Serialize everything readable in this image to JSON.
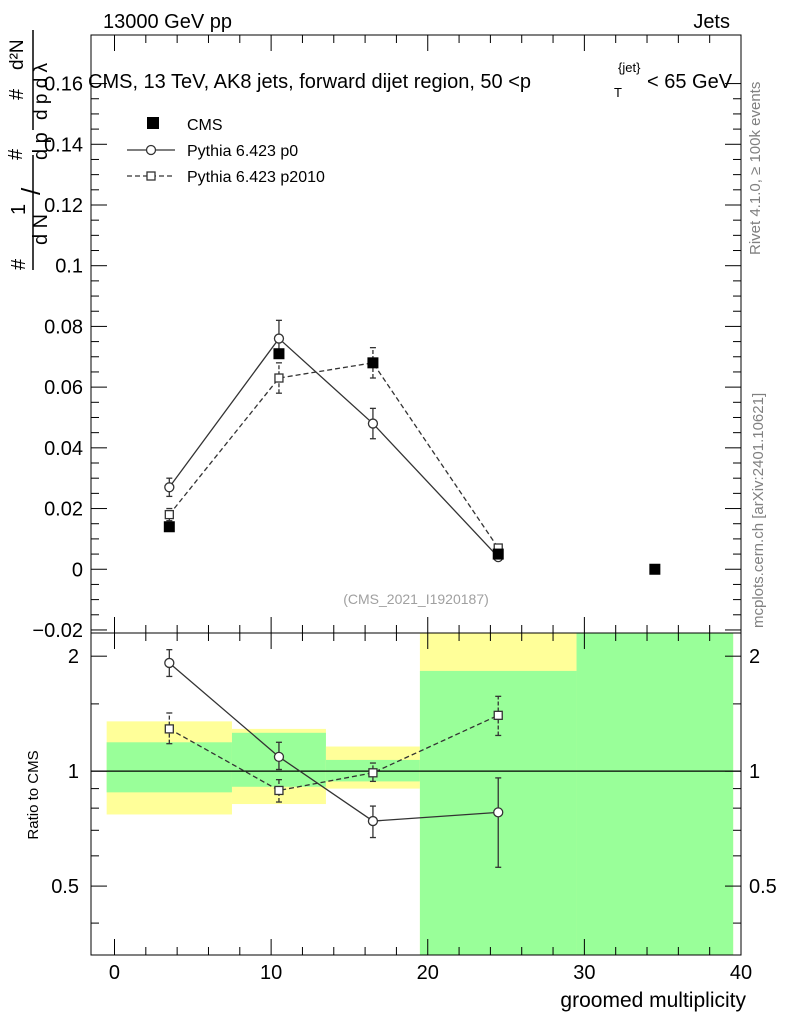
{
  "header": {
    "left": "13000 GeV pp",
    "right": "Jets"
  },
  "title": {
    "prefix": "CMS, 13 TeV, AK8 jets, forward dijet region, 50 <p",
    "sub": "T",
    "sup": "{jet}",
    "suffix": "< 65 GeV"
  },
  "side_labels": {
    "rivet": "Rivet 4.1.0, ≥ 100k events",
    "mcplots": "mcplots.cern.ch [arXiv:2401.10621]"
  },
  "analysis_id": "(CMS_2021_I1920187)",
  "ylabel_top": {
    "hash1": "#",
    "one": "1",
    "dN": "d N",
    "slash": "/",
    "hash2": "#",
    "dpT": "d p",
    "hash3": "#",
    "d2N": "d²N",
    "dpTdl": "d p  d λ"
  },
  "chart_data": [
    {
      "type": "scatter",
      "panel": "main",
      "xlim": [
        -1.5,
        40
      ],
      "ylim": [
        -0.021,
        0.176
      ],
      "yticks": [
        -0.02,
        0,
        0.02,
        0.04,
        0.06,
        0.08,
        0.1,
        0.12,
        0.14,
        0.16
      ],
      "ytick_labels": [
        "−0.02",
        "0",
        "0.02",
        "0.04",
        "0.06",
        "0.08",
        "0.1",
        "0.12",
        "0.14",
        "0.16"
      ],
      "legend_position": "top-left",
      "series": [
        {
          "name": "CMS",
          "style": "filled-square",
          "x": [
            3.5,
            10.5,
            16.5,
            24.5,
            34.5
          ],
          "y": [
            0.014,
            0.071,
            0.068,
            0.005,
            0.0
          ],
          "yerr": [
            0,
            0,
            0,
            0,
            0
          ]
        },
        {
          "name": "Pythia 6.423 p0",
          "style": "solid-circle",
          "x": [
            3.5,
            10.5,
            16.5,
            24.5
          ],
          "y": [
            0.027,
            0.076,
            0.048,
            0.004
          ],
          "yerr": [
            0.003,
            0.006,
            0.005,
            0.001
          ]
        },
        {
          "name": "Pythia 6.423 p2010",
          "style": "dashed-square",
          "x": [
            3.5,
            10.5,
            16.5,
            24.5
          ],
          "y": [
            0.018,
            0.063,
            0.068,
            0.007
          ],
          "yerr": [
            0.002,
            0.005,
            0.005,
            0.001
          ]
        }
      ]
    },
    {
      "type": "scatter",
      "panel": "ratio",
      "ylabel": "Ratio to CMS",
      "xlabel": "groomed multiplicity",
      "xlim": [
        -1.5,
        40
      ],
      "ylim": [
        0.33,
        2.3
      ],
      "xticks": [
        0,
        10,
        20,
        30,
        40
      ],
      "xtick_labels": [
        "0",
        "10",
        "20",
        "30",
        "40"
      ],
      "yticks": [
        0.5,
        1,
        2
      ],
      "ytick_labels": [
        "0.5",
        "1",
        "2"
      ],
      "reference_line": 1,
      "uncertainty_bands": [
        {
          "x0": -0.5,
          "x1": 7.5,
          "yellow": [
            0.77,
            1.35
          ],
          "green": [
            0.88,
            1.19
          ]
        },
        {
          "x0": 7.5,
          "x1": 13.5,
          "yellow": [
            0.82,
            1.29
          ],
          "green": [
            0.91,
            1.26
          ]
        },
        {
          "x0": 13.5,
          "x1": 19.5,
          "yellow": [
            0.9,
            1.16
          ],
          "green": [
            0.94,
            1.07
          ]
        },
        {
          "x0": 19.5,
          "x1": 29.5,
          "yellow": [
            0.3,
            2.3
          ],
          "green": [
            0.3,
            1.83
          ]
        },
        {
          "x0": 29.5,
          "x1": 39.5,
          "yellow": [
            0.3,
            2.3
          ],
          "green": [
            0.3,
            2.3
          ]
        }
      ],
      "series": [
        {
          "name": "Pythia 6.423 p0",
          "style": "solid-circle",
          "x": [
            3.5,
            10.5,
            16.5,
            24.5
          ],
          "y": [
            1.92,
            1.09,
            0.74,
            0.78
          ],
          "ylo": [
            1.77,
            1.01,
            0.67,
            0.56
          ],
          "yhi": [
            2.08,
            1.19,
            0.81,
            0.96
          ]
        },
        {
          "name": "Pythia 6.423 p2010",
          "style": "dashed-square",
          "x": [
            3.5,
            10.5,
            16.5,
            24.5
          ],
          "y": [
            1.29,
            0.89,
            0.99,
            1.4
          ],
          "ylo": [
            1.18,
            0.83,
            0.94,
            1.24
          ],
          "yhi": [
            1.42,
            0.95,
            1.05,
            1.57
          ]
        }
      ]
    }
  ]
}
